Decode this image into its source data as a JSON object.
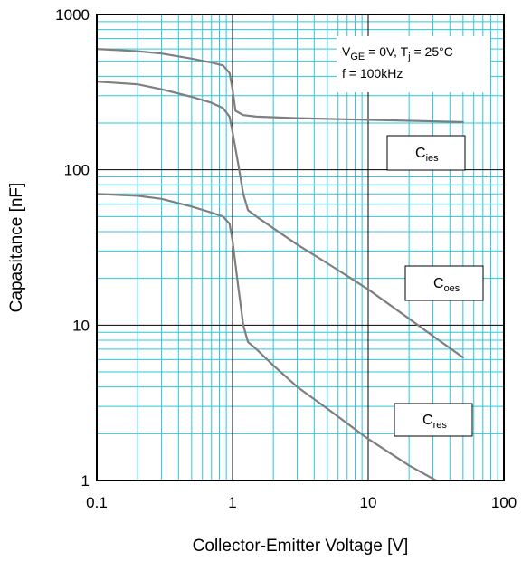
{
  "chart_data": {
    "type": "line",
    "xlabel": "Collector-Emitter Voltage [V]",
    "ylabel": "Capasitance [nF]",
    "xscale": "log",
    "yscale": "log",
    "xlim": [
      0.1,
      100
    ],
    "ylim": [
      1,
      1000
    ],
    "x_ticks": [
      {
        "value": 0.1,
        "label": "0.1"
      },
      {
        "value": 1,
        "label": "1"
      },
      {
        "value": 10,
        "label": "10"
      },
      {
        "value": 100,
        "label": "100"
      }
    ],
    "y_ticks": [
      {
        "value": 1,
        "label": "1"
      },
      {
        "value": 10,
        "label": "10"
      },
      {
        "value": 100,
        "label": "100"
      },
      {
        "value": 1000,
        "label": "1000"
      }
    ],
    "grid": true,
    "conditions": {
      "line1": {
        "v": "V",
        "v_sub": "GE",
        "mid": " = 0V, T",
        "t_sub": "j",
        "rest": " = 25°C"
      },
      "line2": "f = 100kHz"
    },
    "series": [
      {
        "label": {
          "main": "C",
          "sub": "ies"
        },
        "points": [
          [
            0.1,
            600
          ],
          [
            0.2,
            580
          ],
          [
            0.3,
            560
          ],
          [
            0.5,
            520
          ],
          [
            0.7,
            490
          ],
          [
            0.85,
            470
          ],
          [
            0.95,
            420
          ],
          [
            1.0,
            330
          ],
          [
            1.05,
            240
          ],
          [
            1.2,
            225
          ],
          [
            1.5,
            220
          ],
          [
            3,
            215
          ],
          [
            10,
            210
          ],
          [
            50,
            203
          ]
        ]
      },
      {
        "label": {
          "main": "C",
          "sub": "oes"
        },
        "points": [
          [
            0.1,
            370
          ],
          [
            0.2,
            355
          ],
          [
            0.3,
            330
          ],
          [
            0.5,
            295
          ],
          [
            0.7,
            270
          ],
          [
            0.85,
            250
          ],
          [
            0.95,
            220
          ],
          [
            1.0,
            175
          ],
          [
            1.1,
            110
          ],
          [
            1.2,
            70
          ],
          [
            1.3,
            55
          ],
          [
            1.5,
            50
          ],
          [
            2,
            42
          ],
          [
            3,
            33
          ],
          [
            5,
            25
          ],
          [
            10,
            17
          ],
          [
            20,
            11
          ],
          [
            30,
            8.5
          ],
          [
            50,
            6.2
          ]
        ]
      },
      {
        "label": {
          "main": "C",
          "sub": "res"
        },
        "points": [
          [
            0.1,
            70
          ],
          [
            0.2,
            68
          ],
          [
            0.3,
            65
          ],
          [
            0.5,
            58
          ],
          [
            0.7,
            53
          ],
          [
            0.85,
            50
          ],
          [
            0.95,
            45
          ],
          [
            1.0,
            35
          ],
          [
            1.1,
            18
          ],
          [
            1.2,
            10
          ],
          [
            1.3,
            7.8
          ],
          [
            1.5,
            7
          ],
          [
            2,
            5.5
          ],
          [
            3,
            4
          ],
          [
            5,
            2.9
          ],
          [
            10,
            1.85
          ],
          [
            20,
            1.25
          ],
          [
            33,
            0.98
          ]
        ]
      }
    ],
    "colors": {
      "grid_major": "#000000",
      "grid_minor": "#2ec5dd",
      "curve": "#7f7f7f",
      "box_border": "#000000",
      "plot_bg": "#ffffff"
    }
  }
}
